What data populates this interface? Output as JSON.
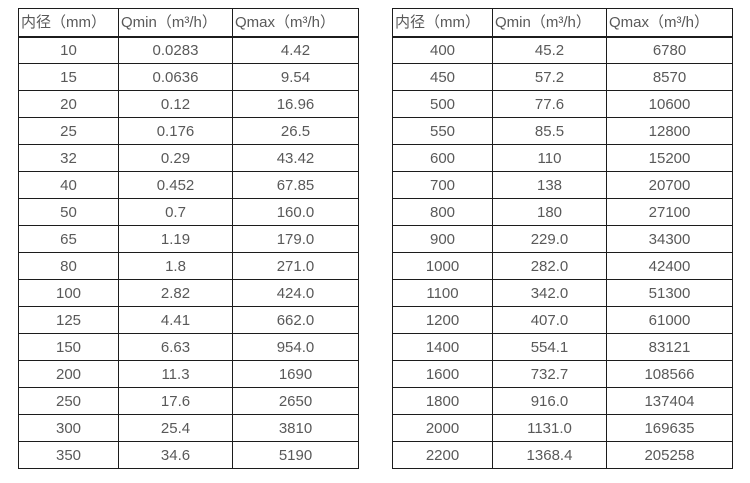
{
  "page": {
    "background_color": "#ffffff",
    "text_color": "#595959",
    "border_color": "#1c1c1c"
  },
  "tables": [
    {
      "name": "spec-table-small-diameters",
      "headers": [
        "内径（mm）",
        "Qmin（m³/h）",
        "Qmax（m³/h）"
      ],
      "rows": [
        [
          "10",
          "0.0283",
          "4.42"
        ],
        [
          "15",
          "0.0636",
          "9.54"
        ],
        [
          "20",
          "0.12",
          "16.96"
        ],
        [
          "25",
          "0.176",
          "26.5"
        ],
        [
          "32",
          "0.29",
          "43.42"
        ],
        [
          "40",
          "0.452",
          "67.85"
        ],
        [
          "50",
          "0.7",
          "160.0"
        ],
        [
          "65",
          "1.19",
          "179.0"
        ],
        [
          "80",
          "1.8",
          "271.0"
        ],
        [
          "100",
          "2.82",
          "424.0"
        ],
        [
          "125",
          "4.41",
          "662.0"
        ],
        [
          "150",
          "6.63",
          "954.0"
        ],
        [
          "200",
          "11.3",
          "1690"
        ],
        [
          "250",
          "17.6",
          "2650"
        ],
        [
          "300",
          "25.4",
          "3810"
        ],
        [
          "350",
          "34.6",
          "5190"
        ]
      ]
    },
    {
      "name": "spec-table-large-diameters",
      "headers": [
        "内径（mm）",
        "Qmin（m³/h）",
        "Qmax（m³/h）"
      ],
      "rows": [
        [
          "400",
          "45.2",
          "6780"
        ],
        [
          "450",
          "57.2",
          "8570"
        ],
        [
          "500",
          "77.6",
          "10600"
        ],
        [
          "550",
          "85.5",
          "12800"
        ],
        [
          "600",
          "110",
          "15200"
        ],
        [
          "700",
          "138",
          "20700"
        ],
        [
          "800",
          "180",
          "27100"
        ],
        [
          "900",
          "229.0",
          "34300"
        ],
        [
          "1000",
          "282.0",
          "42400"
        ],
        [
          "1100",
          "342.0",
          "51300"
        ],
        [
          "1200",
          "407.0",
          "61000"
        ],
        [
          "1400",
          "554.1",
          "83121"
        ],
        [
          "1600",
          "732.7",
          "108566"
        ],
        [
          "1800",
          "916.0",
          "137404"
        ],
        [
          "2000",
          "1131.0",
          "169635"
        ],
        [
          "2200",
          "1368.4",
          "205258"
        ]
      ]
    }
  ]
}
